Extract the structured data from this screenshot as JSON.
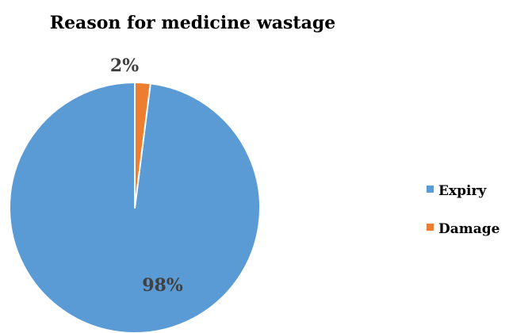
{
  "chart_data": {
    "type": "pie",
    "title": "Reason for medicine wastage",
    "categories": [
      "Expiry",
      "Damage"
    ],
    "values": [
      98,
      2
    ],
    "data_labels": [
      "98%",
      "2%"
    ],
    "colors": [
      "#5b9bd5",
      "#ed7d31"
    ],
    "legend_position": "right",
    "start_angle_deg": 0,
    "direction": "counterclockwise"
  }
}
